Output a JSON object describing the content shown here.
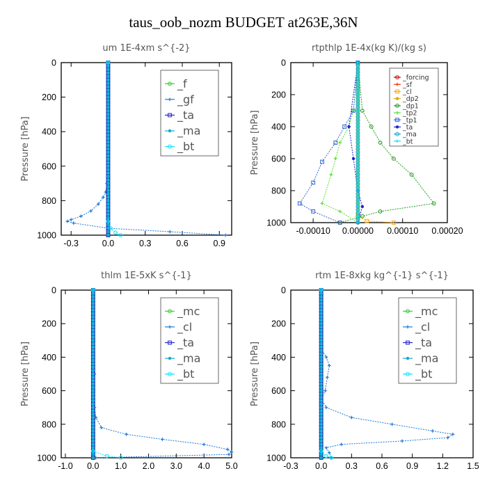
{
  "suptitle": "taus_oob_nozm  BUDGET at263E,36N",
  "chart_data": [
    {
      "type": "line",
      "title": "um   1E-4xm  s^{-2}",
      "ylabel": "Pressure  [hPa]",
      "xlim": [
        -0.38,
        1.0
      ],
      "ylim": [
        1000,
        0
      ],
      "xticks": [
        -0.3,
        0.0,
        0.3,
        0.6,
        0.9
      ],
      "xticklabels": [
        "-0.3",
        "0.0",
        "0.3",
        "0.6",
        "0.9"
      ],
      "yticks": [
        0,
        200,
        400,
        600,
        800,
        1000
      ],
      "yticklabels": [
        "0",
        "200",
        "400",
        "600",
        "800",
        "1000"
      ],
      "legend_position": "top-right",
      "series": [
        {
          "name": "_f",
          "color": "#33cc33",
          "x": [
            0.0,
            0.0
          ],
          "y": [
            0,
            1000
          ]
        },
        {
          "name": "_gf",
          "color": "#1f77d4",
          "x": [
            0.0,
            0.0,
            -0.01,
            -0.02,
            -0.04,
            -0.08,
            -0.14,
            -0.22,
            -0.3,
            -0.33,
            -0.28,
            0.0,
            0.5,
            0.95
          ],
          "y": [
            0,
            600,
            700,
            750,
            780,
            820,
            860,
            890,
            910,
            920,
            930,
            960,
            980,
            1000
          ]
        },
        {
          "name": "_ta",
          "color": "#2222cc",
          "x": [
            0.0,
            0.0
          ],
          "y": [
            0,
            1000
          ]
        },
        {
          "name": "_ma",
          "color": "#11aacc",
          "x": [
            0.0,
            0.0
          ],
          "y": [
            0,
            1000
          ]
        },
        {
          "name": "_bt",
          "color": "#00e5ff",
          "x": [
            0.0,
            0.0,
            0.02,
            0.06,
            0.1
          ],
          "y": [
            0,
            920,
            960,
            985,
            1000
          ]
        }
      ]
    },
    {
      "type": "line",
      "title": "rtpthlp   1E-4x(kg K)/(kg s)",
      "ylabel": "Pressure  [hPa]",
      "xlim": [
        -0.00015,
        0.0002
      ],
      "ylim": [
        1000,
        0
      ],
      "xticks": [
        -0.0001,
        0.0,
        0.0001,
        0.0002
      ],
      "xticklabels": [
        "-0.00010",
        "0.00000",
        "0.00010",
        "0.00020"
      ],
      "yticks": [
        0,
        200,
        400,
        600,
        800,
        1000
      ],
      "yticklabels": [
        "0",
        "200",
        "400",
        "600",
        "800",
        "1000"
      ],
      "legend_position": "top-right",
      "series": [
        {
          "name": "_forcing",
          "color": "#cc0000",
          "x": [
            0.0,
            0.0
          ],
          "y": [
            0,
            1000
          ]
        },
        {
          "name": "_sf",
          "color": "#ff3300",
          "x": [
            0.0,
            0.0
          ],
          "y": [
            0,
            1000
          ]
        },
        {
          "name": "_cl",
          "color": "#ffaa00",
          "x": [
            0.0,
            0.0,
            2e-05,
            8e-05
          ],
          "y": [
            0,
            960,
            990,
            1000
          ]
        },
        {
          "name": "_dp2",
          "color": "#ddaa00",
          "x": [
            0.0,
            0.0
          ],
          "y": [
            0,
            1000
          ]
        },
        {
          "name": "_dp1",
          "color": "#229922",
          "x": [
            0.0,
            1e-05,
            3e-05,
            5e-05,
            8e-05,
            0.00012,
            0.00017,
            5e-05,
            1e-05,
            -4e-05
          ],
          "y": [
            0,
            300,
            400,
            500,
            600,
            700,
            880,
            930,
            960,
            1000
          ]
        },
        {
          "name": "_tp2",
          "color": "#55dd33",
          "x": [
            0.0,
            -1e-05,
            -2e-05,
            -4e-05,
            -5e-05,
            -6e-05,
            -8e-05,
            -4e-05,
            0.0
          ],
          "y": [
            0,
            300,
            400,
            500,
            600,
            700,
            880,
            930,
            1000
          ]
        },
        {
          "name": "_tp1",
          "color": "#3366cc",
          "x": [
            0.0,
            -1e-05,
            -3e-05,
            -5e-05,
            -8e-05,
            -0.0001,
            -0.00013,
            -0.0001,
            -4e-05
          ],
          "y": [
            0,
            300,
            400,
            500,
            620,
            750,
            880,
            930,
            1000
          ]
        },
        {
          "name": "_ta",
          "color": "#2222cc",
          "x": [
            0.0,
            -2e-05,
            -1e-05,
            0.0,
            1e-05,
            0.0
          ],
          "y": [
            0,
            400,
            600,
            800,
            900,
            1000
          ]
        },
        {
          "name": "_ma",
          "color": "#11aacc",
          "x": [
            0.0,
            0.0
          ],
          "y": [
            0,
            1000
          ]
        },
        {
          "name": "_bt",
          "color": "#00e5ff",
          "x": [
            0.0,
            0.0
          ],
          "y": [
            0,
            1000
          ]
        }
      ]
    },
    {
      "type": "line",
      "title": "thlm   1E-5xK  s^{-1}",
      "ylabel": "Pressure  [hPa]",
      "xlim": [
        -1.15,
        5.0
      ],
      "ylim": [
        1000,
        0
      ],
      "xticks": [
        -1.0,
        0.0,
        1.0,
        2.0,
        3.0,
        4.0,
        5.0
      ],
      "xticklabels": [
        "-1.0",
        "0.0",
        "1.0",
        "2.0",
        "3.0",
        "4.0",
        "5.0"
      ],
      "yticks": [
        0,
        200,
        400,
        600,
        800,
        1000
      ],
      "yticklabels": [
        "0",
        "200",
        "400",
        "600",
        "800",
        "1000"
      ],
      "legend_position": "top-right",
      "series": [
        {
          "name": "_mc",
          "color": "#33cc33",
          "x": [
            0.0,
            0.0
          ],
          "y": [
            0,
            1000
          ]
        },
        {
          "name": "_cl",
          "color": "#1f77d4",
          "x": [
            0.0,
            0.02,
            0.05,
            0.02,
            0.05,
            0.1,
            0.3,
            1.2,
            2.5,
            4.0,
            4.85,
            5.0,
            4.9,
            0.1
          ],
          "y": [
            0,
            300,
            500,
            600,
            700,
            760,
            820,
            860,
            890,
            920,
            950,
            965,
            980,
            1000
          ]
        },
        {
          "name": "_ta",
          "color": "#2222cc",
          "x": [
            0.0,
            0.0
          ],
          "y": [
            0,
            1000
          ]
        },
        {
          "name": "_ma",
          "color": "#11aacc",
          "x": [
            0.0,
            0.0
          ],
          "y": [
            0,
            1000
          ]
        },
        {
          "name": "_bt",
          "color": "#00e5ff",
          "x": [
            0.0,
            0.0,
            0.5,
            1.0
          ],
          "y": [
            0,
            960,
            990,
            1000
          ]
        }
      ]
    },
    {
      "type": "line",
      "title": "rtm   1E-8xkg kg^{-1} s^{-1}",
      "ylabel": "Pressure  [hPa]",
      "xlim": [
        -0.3,
        1.5
      ],
      "ylim": [
        1000,
        0
      ],
      "xticks": [
        -0.3,
        0.0,
        0.3,
        0.6,
        0.9,
        1.2,
        1.5
      ],
      "xticklabels": [
        "-0.3",
        "0.0",
        "0.3",
        "0.6",
        "0.9",
        "1.2",
        "1.5"
      ],
      "yticks": [
        0,
        200,
        400,
        600,
        800,
        1000
      ],
      "yticklabels": [
        "0",
        "200",
        "400",
        "600",
        "800",
        "1000"
      ],
      "legend_position": "top-right",
      "series": [
        {
          "name": "_mc",
          "color": "#33cc33",
          "x": [
            0.0,
            0.0
          ],
          "y": [
            0,
            1000
          ]
        },
        {
          "name": "_cl",
          "color": "#1f77d4",
          "x": [
            0.0,
            0.0,
            0.05,
            0.08,
            0.06,
            0.04,
            0.0,
            0.05,
            0.3,
            0.7,
            1.1,
            1.3,
            1.25,
            0.8,
            0.2,
            0.05,
            0.08,
            0.1
          ],
          "y": [
            0,
            350,
            400,
            450,
            520,
            600,
            650,
            700,
            760,
            800,
            840,
            860,
            880,
            900,
            920,
            940,
            970,
            1000
          ]
        },
        {
          "name": "_ta",
          "color": "#2222cc",
          "x": [
            0.0,
            0.0
          ],
          "y": [
            0,
            1000
          ]
        },
        {
          "name": "_ma",
          "color": "#11aacc",
          "x": [
            0.0,
            0.0
          ],
          "y": [
            0,
            1000
          ]
        },
        {
          "name": "_bt",
          "color": "#00e5ff",
          "x": [
            0.0,
            0.0,
            0.05,
            0.1
          ],
          "y": [
            0,
            960,
            990,
            1000
          ]
        }
      ]
    }
  ]
}
